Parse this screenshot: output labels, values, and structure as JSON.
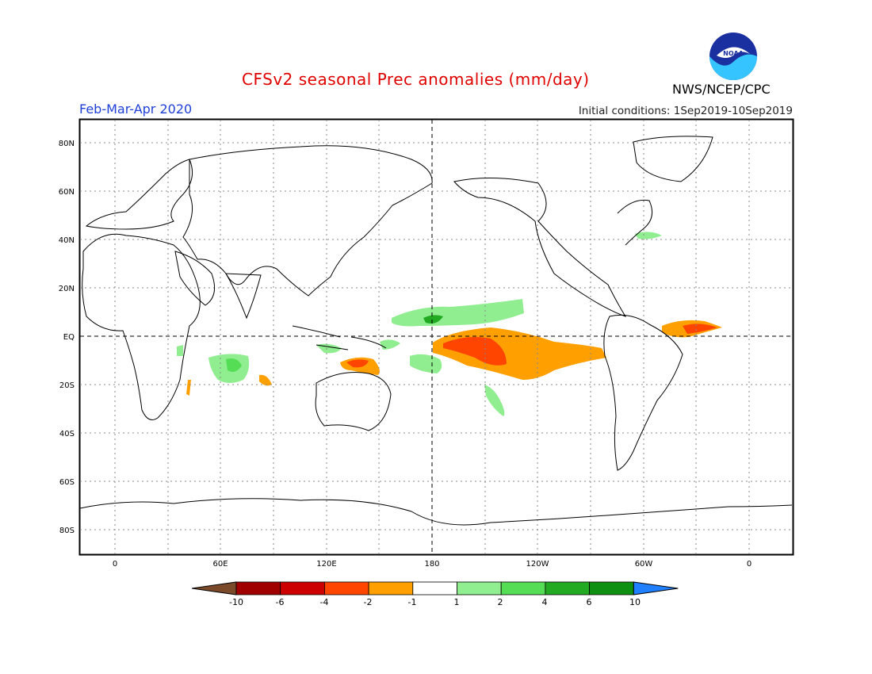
{
  "header": {
    "title": "CFSv2 seasonal Prec anomalies (mm/day)",
    "season": "Feb-Mar-Apr 2020",
    "initial_conditions": "Initial conditions: 1Sep2019-10Sep2019",
    "agency": "NWS/NCEP/CPC",
    "logo_text": "NOAA"
  },
  "map": {
    "projection": "equirectangular",
    "lon_range": [
      -20,
      380
    ],
    "lat_range": [
      -90,
      90
    ],
    "y_ticks": [
      "80N",
      "60N",
      "40N",
      "20N",
      "EQ",
      "20S",
      "40S",
      "60S",
      "80S"
    ],
    "x_ticks": [
      "0",
      "60E",
      "120E",
      "180",
      "120W",
      "60W",
      "0"
    ],
    "grid": "dotted",
    "reference_lines": [
      "equator",
      "dateline"
    ]
  },
  "colorbar": {
    "labels": [
      "-10",
      "-6",
      "-4",
      "-2",
      "-1",
      "1",
      "2",
      "4",
      "6",
      "10"
    ],
    "colors": [
      "#7a4a2a",
      "#a00000",
      "#cc0000",
      "#ff4500",
      "#ffa000",
      "#ffffff",
      "#90ee90",
      "#55dd55",
      "#22aa22",
      "#109010",
      "#2080ff"
    ]
  },
  "anomaly_colors": {
    "dry_light": "#ffa000",
    "dry_strong": "#ff4500",
    "wet_light": "#90ee90",
    "wet_medium": "#55dd55",
    "wet_strong": "#22aa22"
  }
}
